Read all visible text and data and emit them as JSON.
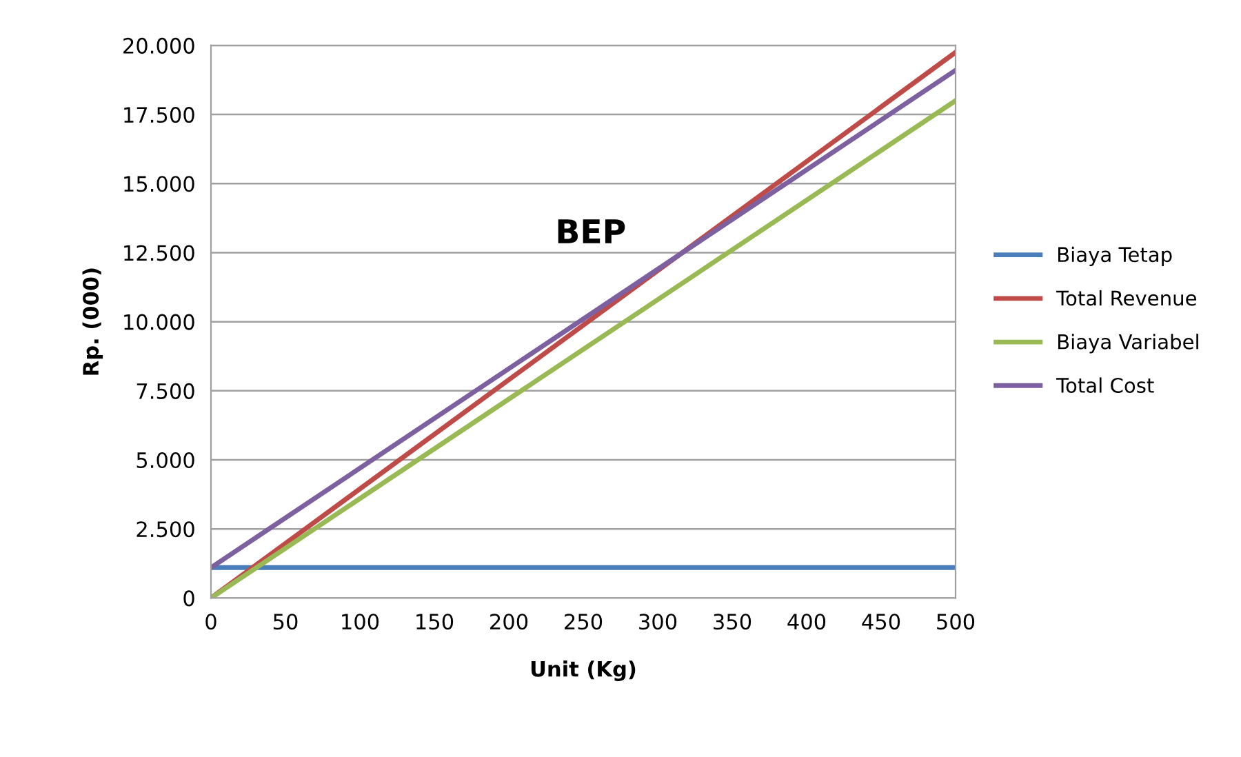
{
  "chart_data": {
    "type": "line",
    "xlabel": "Unit (Kg)",
    "ylabel": "Rp. (000)",
    "x": [
      0,
      500
    ],
    "series": [
      {
        "name": "Biaya Tetap",
        "color": "#4a7ebb",
        "values": [
          1100,
          1100
        ]
      },
      {
        "name": "Total Revenue",
        "color": "#be4b48",
        "values": [
          0,
          19750
        ]
      },
      {
        "name": "Biaya Variabel",
        "color": "#98b954",
        "values": [
          0,
          18000
        ]
      },
      {
        "name": "Total Cost",
        "color": "#7d60a0",
        "values": [
          1100,
          19100
        ]
      }
    ],
    "xlim": [
      0,
      500
    ],
    "xticks": [
      0,
      50,
      100,
      150,
      200,
      250,
      300,
      350,
      400,
      450,
      500
    ],
    "ylim": [
      0,
      20000
    ],
    "yticks": [
      {
        "value": 0,
        "label": "0"
      },
      {
        "value": 2500,
        "label": "2.500"
      },
      {
        "value": 5000,
        "label": "5.000"
      },
      {
        "value": 7500,
        "label": "7.500"
      },
      {
        "value": 10000,
        "label": "10.000"
      },
      {
        "value": 12500,
        "label": "12.500"
      },
      {
        "value": 15000,
        "label": "15.000"
      },
      {
        "value": 17500,
        "label": "17.500"
      },
      {
        "value": 20000,
        "label": "20.000"
      }
    ],
    "grid": "y",
    "legend": "right",
    "annotations": [
      "BEP"
    ]
  }
}
